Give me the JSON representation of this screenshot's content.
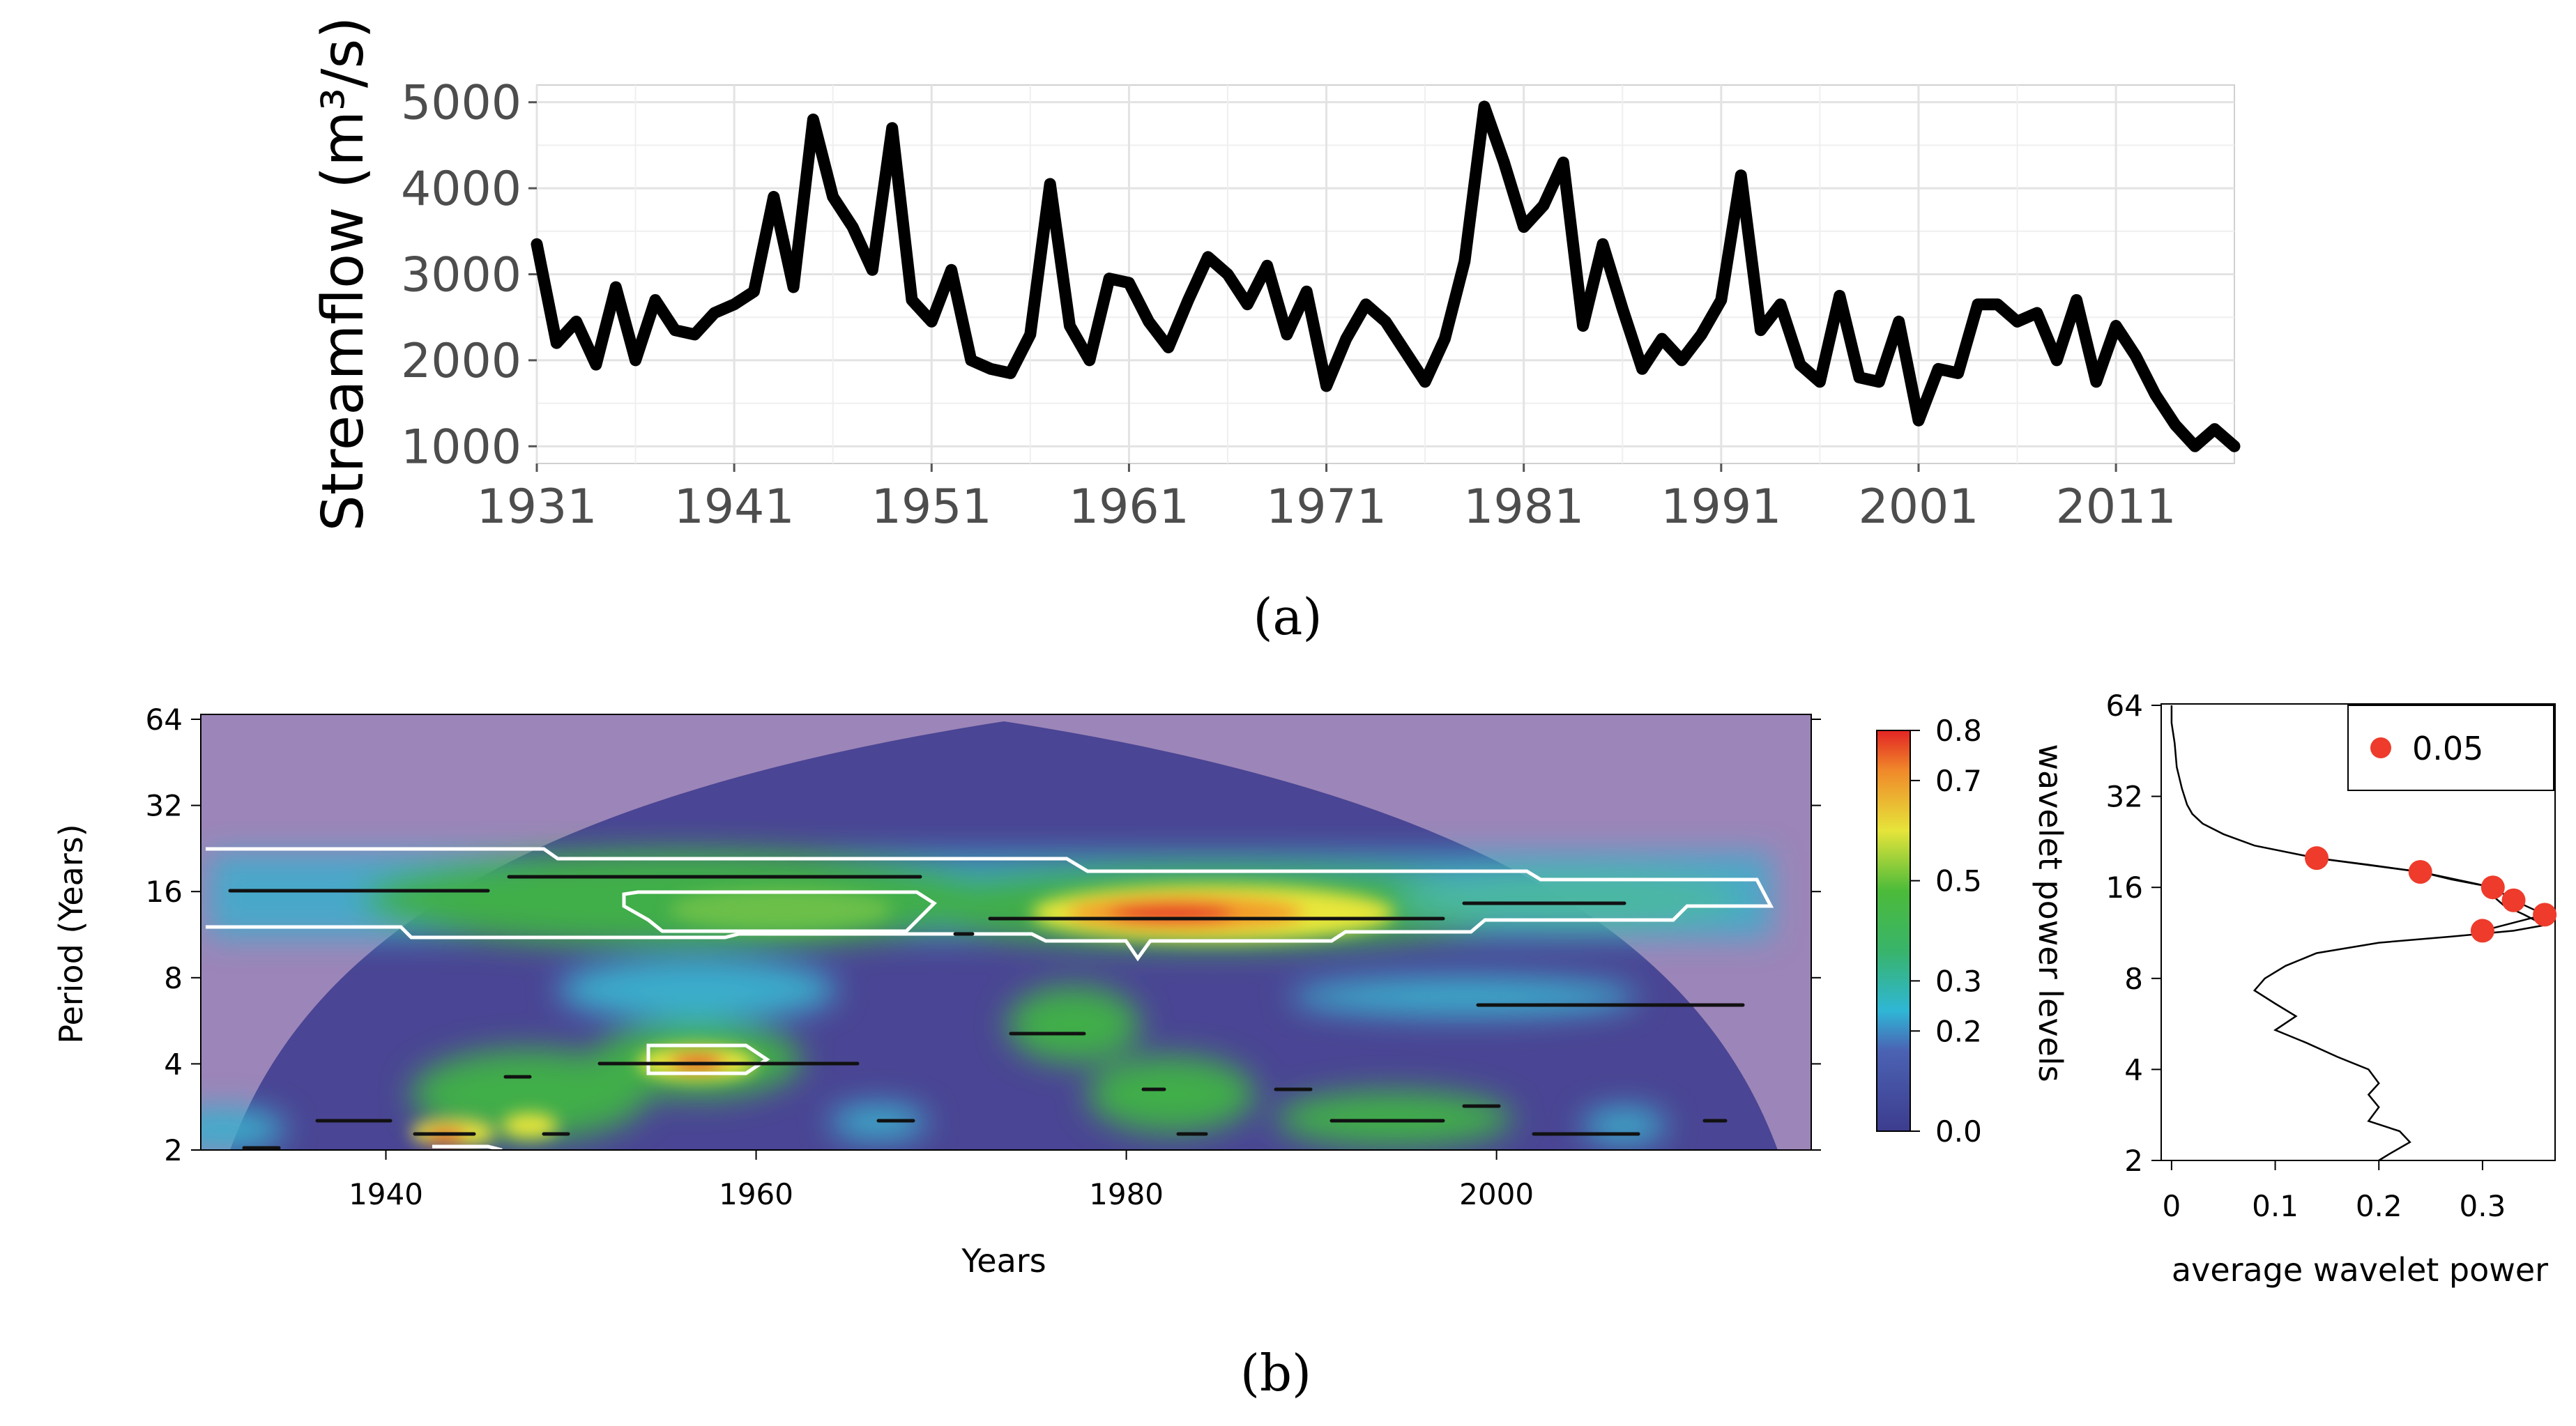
{
  "chart_data": [
    {
      "type": "line",
      "panel_label": "(a)",
      "ylabel": "Streamflow (m³/s)",
      "xlabel": "",
      "ylim": [
        800,
        5200
      ],
      "xlim": [
        1931,
        2017
      ],
      "yticks": [
        1000,
        2000,
        3000,
        4000,
        5000
      ],
      "xticks": [
        1931,
        1941,
        1951,
        1961,
        1971,
        1981,
        1991,
        2001,
        2011
      ],
      "grid": true,
      "series": [
        {
          "name": "Streamflow",
          "x": [
            1931,
            1932,
            1933,
            1934,
            1935,
            1936,
            1937,
            1938,
            1939,
            1940,
            1941,
            1942,
            1943,
            1944,
            1945,
            1946,
            1947,
            1948,
            1949,
            1950,
            1951,
            1952,
            1953,
            1954,
            1955,
            1956,
            1957,
            1958,
            1959,
            1960,
            1961,
            1962,
            1963,
            1964,
            1965,
            1966,
            1967,
            1968,
            1969,
            1970,
            1971,
            1972,
            1973,
            1974,
            1975,
            1976,
            1977,
            1978,
            1979,
            1980,
            1981,
            1982,
            1983,
            1984,
            1985,
            1986,
            1987,
            1988,
            1989,
            1990,
            1991,
            1992,
            1993,
            1994,
            1995,
            1996,
            1997,
            1998,
            1999,
            2000,
            2001,
            2002,
            2003,
            2004,
            2005,
            2006,
            2007,
            2008,
            2009,
            2010,
            2011,
            2012,
            2013,
            2014,
            2015,
            2016,
            2017
          ],
          "values": [
            3350,
            2200,
            2450,
            1950,
            2850,
            2000,
            2700,
            2350,
            2300,
            2550,
            2650,
            2800,
            3900,
            2850,
            4800,
            3900,
            3550,
            3050,
            4700,
            2700,
            2450,
            3050,
            2000,
            1900,
            1850,
            2300,
            4050,
            2400,
            2000,
            2950,
            2900,
            2450,
            2150,
            2700,
            3200,
            3000,
            2650,
            3100,
            2300,
            2800,
            1700,
            2250,
            2650,
            2450,
            2100,
            1750,
            2250,
            3150,
            4950,
            4300,
            3550,
            3800,
            4300,
            2400,
            3350,
            2600,
            1900,
            2250,
            2000,
            2300,
            2700,
            4150,
            2350,
            2650,
            1950,
            1750,
            2750,
            1800,
            1750,
            2450,
            1300,
            1900,
            1850,
            2650,
            2650,
            2450,
            2550,
            2000,
            2700,
            1750,
            2400,
            2050,
            1600,
            1250,
            1000,
            1200,
            1000
          ]
        }
      ]
    },
    {
      "type": "heatmap",
      "panel_label": "(b)",
      "xlabel": "Years",
      "ylabel": "Period (Years)",
      "xlim": [
        1930,
        2017
      ],
      "xticks": [
        1940,
        1960,
        1980,
        2000
      ],
      "yticks": [
        2,
        4,
        8,
        16,
        32,
        64
      ],
      "colorbar": {
        "label": "wavelet power levels",
        "ticks": [
          0.0,
          0.2,
          0.3,
          0.5,
          0.7,
          0.8
        ],
        "tick_labels": [
          "0.0",
          "0.2",
          "0.3",
          "0.5",
          "0.7",
          "0.8"
        ],
        "range": [
          0.0,
          0.8
        ]
      },
      "power_regions": [
        {
          "year_center": 1983,
          "period": 12,
          "power": 0.8
        },
        {
          "year_center": 1958,
          "period": 4,
          "power": 0.75
        },
        {
          "year_center": 1945,
          "period": 2.2,
          "power": 0.7
        },
        {
          "year_center": 1955,
          "period": 14,
          "power": 0.5
        },
        {
          "year_center": 1975,
          "period": 6,
          "power": 0.5
        },
        {
          "year_center": 1995,
          "period": 2.6,
          "power": 0.45
        }
      ]
    },
    {
      "type": "line",
      "xlabel": "average wavelet power",
      "ylabel": "",
      "xlim": [
        -0.01,
        0.37
      ],
      "xticks": [
        0,
        0.1,
        0.2,
        0.3
      ],
      "xtick_labels": [
        "0",
        "0.1",
        "0.2",
        "0.3"
      ],
      "yticks": [
        2,
        4,
        8,
        16,
        32,
        64
      ],
      "legend": {
        "label": "0.05",
        "position": "top-right"
      },
      "series": [
        {
          "name": "average wavelet power",
          "period": [
            2.0,
            2.1,
            2.3,
            2.5,
            2.7,
            3.0,
            3.3,
            3.6,
            4.0,
            4.4,
            4.9,
            5.4,
            6.0,
            6.6,
            7.3,
            8.0,
            8.8,
            9.7,
            10.5,
            11.0,
            11.5,
            12.0,
            13.0,
            14.0,
            15.0,
            16.0,
            17.0,
            18.0,
            19.0,
            20.0,
            22.0,
            24.0,
            26.0,
            28.0,
            30.0,
            34.0,
            40.0,
            48.0,
            56.0,
            64.0
          ],
          "power": [
            0.2,
            0.21,
            0.23,
            0.22,
            0.19,
            0.2,
            0.19,
            0.2,
            0.19,
            0.16,
            0.13,
            0.1,
            0.12,
            0.1,
            0.08,
            0.09,
            0.11,
            0.14,
            0.2,
            0.27,
            0.33,
            0.36,
            0.34,
            0.32,
            0.31,
            0.31,
            0.27,
            0.24,
            0.19,
            0.14,
            0.08,
            0.05,
            0.03,
            0.02,
            0.015,
            0.01,
            0.005,
            0.003,
            0.0,
            0.0
          ]
        },
        {
          "name": "0.05",
          "points": [
            {
              "period": 20.0,
              "power": 0.14
            },
            {
              "period": 18.0,
              "power": 0.24
            },
            {
              "period": 16.0,
              "power": 0.31
            },
            {
              "period": 14.5,
              "power": 0.33
            },
            {
              "period": 13.0,
              "power": 0.36
            },
            {
              "period": 11.5,
              "power": 0.3
            }
          ]
        }
      ]
    }
  ]
}
